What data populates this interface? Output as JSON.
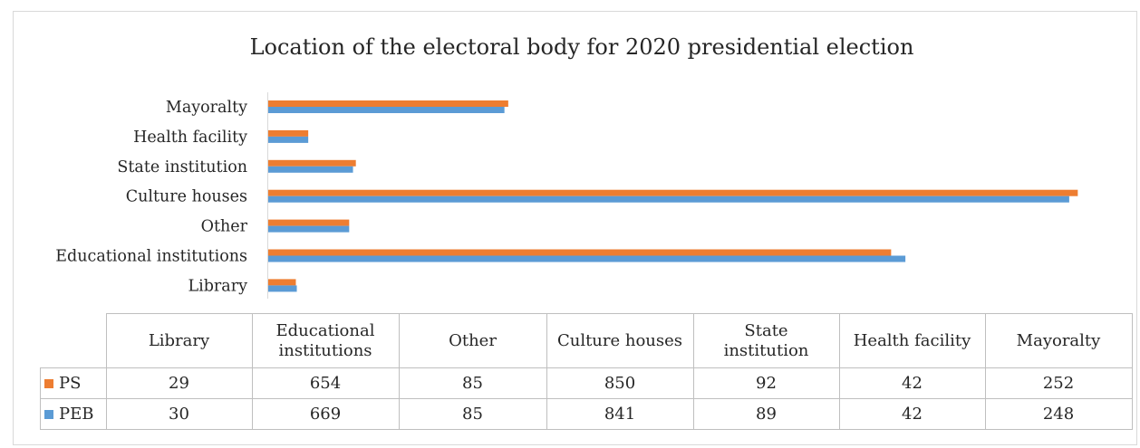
{
  "chart_data": {
    "type": "bar",
    "orientation": "horizontal",
    "title": "Location of the electoral body for 2020 presidential election",
    "categories": [
      "Library",
      "Educational institutions",
      "Other",
      "Culture houses",
      "State institution",
      "Health facility",
      "Mayoralty"
    ],
    "table_headers": [
      "Library",
      "Educational\ninstitutions",
      "Other",
      "Culture houses",
      "State\ninstitution",
      "Health facility",
      "Mayoralty"
    ],
    "series": [
      {
        "name": "PS",
        "color": "#ed7d31",
        "values": [
          29,
          654,
          85,
          850,
          92,
          42,
          252
        ]
      },
      {
        "name": "PEB",
        "color": "#5b9bd5",
        "values": [
          30,
          669,
          85,
          841,
          89,
          42,
          248
        ]
      }
    ],
    "xlim": [
      0,
      850
    ],
    "grid": false,
    "legend": "data-table"
  }
}
